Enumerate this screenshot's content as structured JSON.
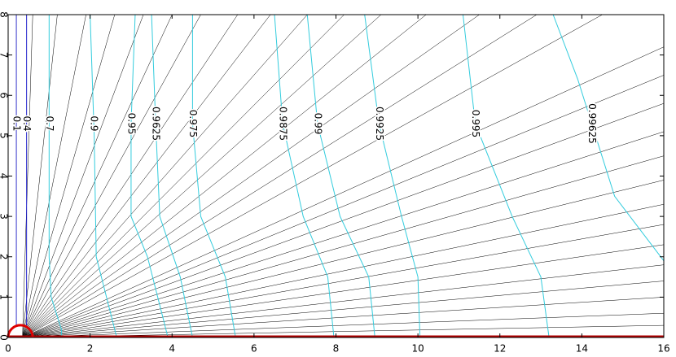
{
  "chart_data": {
    "type": "contour",
    "xlim": [
      0,
      16
    ],
    "ylim": [
      0,
      8
    ],
    "xticks": [
      0,
      2,
      4,
      6,
      8,
      10,
      12,
      14,
      16
    ],
    "yticks": [
      0,
      1,
      2,
      3,
      4,
      5,
      6,
      7,
      8
    ],
    "streamline_color": "#000000",
    "streamlines": [
      {
        "x": [
          0.35,
          0.6
        ],
        "y": [
          0,
          8
        ]
      },
      {
        "x": [
          0.35,
          1.2
        ],
        "y": [
          0,
          8
        ]
      },
      {
        "x": [
          0.35,
          1.9
        ],
        "y": [
          0,
          8
        ]
      },
      {
        "x": [
          0.35,
          2.6
        ],
        "y": [
          0,
          8
        ]
      },
      {
        "x": [
          0.35,
          3.3
        ],
        "y": [
          0,
          8
        ]
      },
      {
        "x": [
          0.35,
          4.0
        ],
        "y": [
          0,
          8
        ]
      },
      {
        "x": [
          0.35,
          4.7
        ],
        "y": [
          0,
          8
        ]
      },
      {
        "x": [
          0.35,
          5.6
        ],
        "y": [
          0,
          8
        ]
      },
      {
        "x": [
          0.35,
          6.4
        ],
        "y": [
          0,
          8
        ]
      },
      {
        "x": [
          0.35,
          7.3
        ],
        "y": [
          0,
          8
        ]
      },
      {
        "x": [
          0.35,
          8.2
        ],
        "y": [
          0,
          8
        ]
      },
      {
        "x": [
          0.35,
          9.1
        ],
        "y": [
          0,
          8
        ]
      },
      {
        "x": [
          0.35,
          10.2
        ],
        "y": [
          0,
          8
        ]
      },
      {
        "x": [
          0.35,
          11.5
        ],
        "y": [
          0,
          8
        ]
      },
      {
        "x": [
          0.35,
          12.9
        ],
        "y": [
          0,
          8
        ]
      },
      {
        "x": [
          0.35,
          14.5
        ],
        "y": [
          0,
          8
        ]
      },
      {
        "x": [
          0.35,
          16
        ],
        "y": [
          0,
          7.2
        ]
      },
      {
        "x": [
          0.35,
          16
        ],
        "y": [
          0,
          6.5
        ]
      },
      {
        "x": [
          0.35,
          16
        ],
        "y": [
          0,
          5.8
        ]
      },
      {
        "x": [
          0.35,
          16
        ],
        "y": [
          0,
          5.1
        ]
      },
      {
        "x": [
          0.35,
          16
        ],
        "y": [
          0,
          4.5
        ]
      },
      {
        "x": [
          0.35,
          16
        ],
        "y": [
          0,
          3.9
        ]
      },
      {
        "x": [
          0.35,
          16
        ],
        "y": [
          0,
          3.3
        ]
      },
      {
        "x": [
          0.35,
          16
        ],
        "y": [
          0,
          2.8
        ]
      },
      {
        "x": [
          0.35,
          16
        ],
        "y": [
          0,
          2.3
        ]
      },
      {
        "x": [
          0.35,
          16
        ],
        "y": [
          0,
          1.8
        ]
      },
      {
        "x": [
          0.35,
          16
        ],
        "y": [
          0,
          1.4
        ]
      },
      {
        "x": [
          0.35,
          16
        ],
        "y": [
          0,
          1.0
        ]
      },
      {
        "x": [
          0.35,
          16
        ],
        "y": [
          0,
          0.6
        ]
      },
      {
        "x": [
          0.35,
          16
        ],
        "y": [
          0,
          0.3
        ]
      }
    ],
    "contours": [
      {
        "name": "0.1",
        "color": "#3333cc",
        "x": [
          0.2,
          0.2
        ],
        "y": [
          0.3,
          8
        ]
      },
      {
        "name": "0.4",
        "color": "#2222cc",
        "x": [
          0.45,
          0.45
        ],
        "y": [
          0.3,
          8
        ]
      },
      {
        "name": "0.7",
        "color": "#33ccdd",
        "x": [
          1.0,
          1.0,
          1.05,
          1.3,
          1.3
        ],
        "y": [
          8,
          2,
          1,
          0.2,
          0
        ]
      },
      {
        "name": "0.9",
        "color": "#33ccdd",
        "x": [
          2.0,
          2.1,
          2.15,
          2.4,
          2.65
        ],
        "y": [
          8,
          5,
          2,
          1,
          0
        ]
      },
      {
        "name": "0.95",
        "color": "#33ccdd",
        "x": [
          3.1,
          3.0,
          3.0,
          3.4,
          3.9
        ],
        "y": [
          8,
          5.3,
          3,
          2,
          0
        ]
      },
      {
        "name": "0.9625",
        "color": "#33ccdd",
        "x": [
          3.5,
          3.6,
          3.7,
          4.2,
          4.5
        ],
        "y": [
          8,
          5.3,
          3,
          1.5,
          0
        ]
      },
      {
        "name": "0.975",
        "color": "#33ccdd",
        "x": [
          4.5,
          4.5,
          4.7,
          5.3,
          5.55
        ],
        "y": [
          8,
          5.3,
          3,
          1.5,
          0
        ]
      },
      {
        "name": "0.9875",
        "color": "#33ccdd",
        "x": [
          6.5,
          6.7,
          7.2,
          7.8,
          7.95
        ],
        "y": [
          8,
          5.3,
          3,
          1.5,
          0
        ]
      },
      {
        "name": "0.99",
        "color": "#33ccdd",
        "x": [
          7.3,
          7.55,
          8.1,
          8.8,
          8.95
        ],
        "y": [
          8,
          5.3,
          3,
          1.5,
          0
        ]
      },
      {
        "name": "0.9925",
        "color": "#33ccdd",
        "x": [
          8.7,
          9.05,
          9.6,
          10.0,
          10.05
        ],
        "y": [
          8,
          5.3,
          3,
          1.5,
          0
        ]
      },
      {
        "name": "0.995",
        "color": "#33ccdd",
        "x": [
          11.1,
          11.4,
          12.3,
          13.0,
          13.2
        ],
        "y": [
          8,
          5.3,
          3,
          1.5,
          0
        ]
      },
      {
        "name": "0.99625",
        "color": "#33ccdd",
        "x": [
          13.3,
          13.9,
          14.8,
          16
        ],
        "y": [
          8,
          6.4,
          3.5,
          1.9
        ]
      }
    ]
  }
}
